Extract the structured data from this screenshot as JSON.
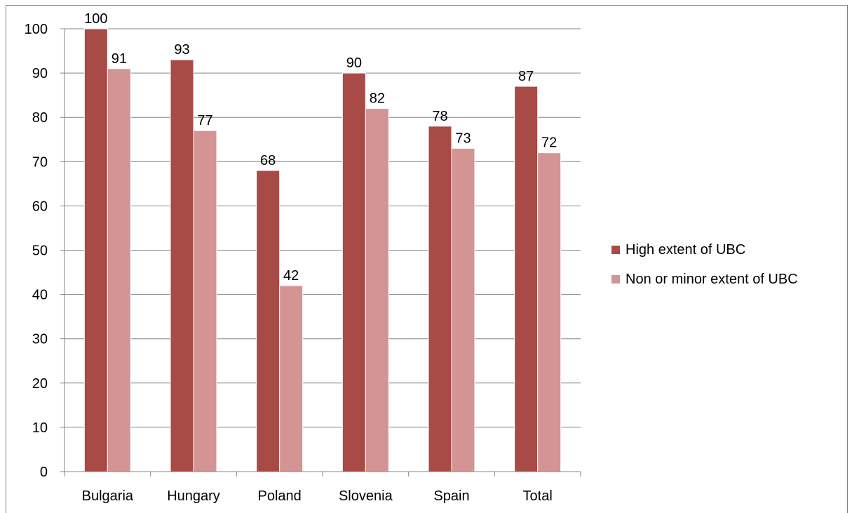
{
  "chart_data": {
    "type": "bar",
    "categories": [
      "Bulgaria",
      "Hungary",
      "Poland",
      "Slovenia",
      "Spain",
      "Total"
    ],
    "series": [
      {
        "name": "High extent of UBC",
        "values": [
          100,
          93,
          68,
          90,
          78,
          87
        ],
        "color": "#a84a46"
      },
      {
        "name": "Non or minor extent of UBC",
        "values": [
          91,
          77,
          42,
          82,
          73,
          72
        ],
        "color": "#d39493"
      }
    ],
    "ylim": [
      0,
      100
    ],
    "yticks": [
      "0",
      "10",
      "20",
      "30",
      "40",
      "50",
      "60",
      "70",
      "80",
      "90",
      "100"
    ],
    "grid": true,
    "legend_position": "right"
  }
}
